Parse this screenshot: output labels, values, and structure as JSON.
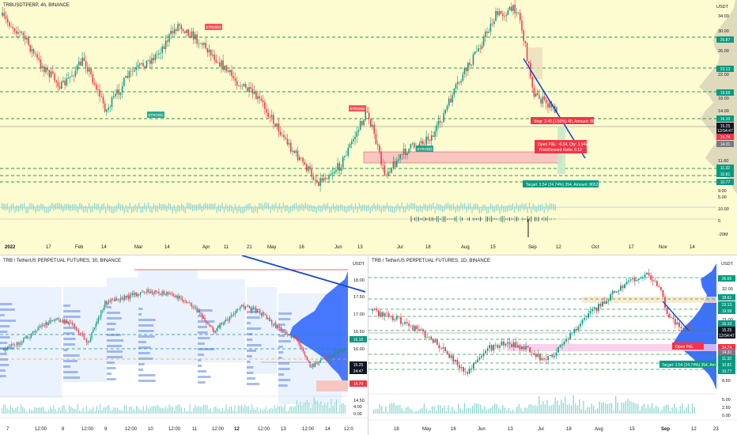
{
  "top_chart": {
    "title": "TRBUSDTPERP, 4h, BINANCE",
    "currency": "USDT",
    "x_ticks": [
      "2022",
      "17",
      "Feb",
      "14",
      "Mar",
      "14",
      "Apr",
      "11",
      "21",
      "May",
      "16",
      "Jun",
      "13",
      "Jul",
      "18",
      "Aug",
      "15",
      "Sep",
      "12",
      "Oct",
      "17",
      "Nov",
      "14"
    ],
    "price_ticks": [
      "34.00",
      "30.00",
      "26.00",
      "22.00",
      "18.00",
      "14.00",
      "11.60",
      "9.00",
      "5.00"
    ],
    "level_badges": [
      {
        "label": "26.87",
        "color": "#089981"
      },
      {
        "label": "23.13",
        "color": "#089981"
      },
      {
        "label": "19.58",
        "color": "#089981"
      },
      {
        "label": "16.10",
        "color": "#089981"
      },
      {
        "label": "15.25",
        "color": "#131722"
      },
      {
        "label": "13:54:47",
        "color": "#131722"
      },
      {
        "label": "14.74",
        "color": "#f23645"
      },
      {
        "label": "14.31",
        "color": "#787b86"
      },
      {
        "label": "11.32",
        "color": "#089981"
      },
      {
        "label": "10.81",
        "color": "#089981"
      },
      {
        "label": "10.77",
        "color": "#089981"
      }
    ],
    "volume_ticks": [
      "10.00",
      "0.00"
    ],
    "osc_ticks": [
      "0",
      "-20M"
    ],
    "signals": [
      {
        "label": "STRONG",
        "kind": "sell"
      },
      {
        "label": "STRONG",
        "kind": "buy"
      },
      {
        "label": "STRONG",
        "kind": "sell"
      },
      {
        "label": "STRONG",
        "kind": "buy"
      }
    ],
    "position_labels": {
      "stop": "Stop: 2.43 (3.50%) 40, Amount: 890",
      "open_pl": "Open P&L: -0.54, Qty: 1.542",
      "risk_reward": "Risk/Reward Ratio: 0.12",
      "target": "Target: 3.54 (24.74%) 354, Amount: 8652.08"
    }
  },
  "bottom_left_chart": {
    "title": "TRB / TetherUS PERPETUAL FUTURES, 30, BINANCE",
    "currency": "USDT",
    "price_ticks": [
      "18.00",
      "17.50",
      "17.00",
      "16.50",
      "16.00",
      "15.50",
      "15.00",
      "14.50"
    ],
    "level_badges": [
      {
        "label": "16.10",
        "color": "#089981"
      },
      {
        "label": "15.25",
        "color": "#131722"
      },
      {
        "label": "24:47",
        "color": "#131722"
      },
      {
        "label": "14.74",
        "color": "#f23645"
      }
    ],
    "x_ticks": [
      "7",
      "12:00",
      "8",
      "12:00",
      "9",
      "12:00",
      "10",
      "12:00",
      "11",
      "12:00",
      "12",
      "12:00",
      "13",
      "12:00",
      "14",
      "12:0"
    ],
    "volume_ticks": [
      "4.00",
      "0.00"
    ]
  },
  "bottom_right_chart": {
    "title": "TRB / TetherUS PERPETUAL FUTURES, 1D, BINANCE",
    "currency": "USDT",
    "price_ticks": [
      "32.00",
      "21.00",
      "16.00",
      "12.00",
      "8.50"
    ],
    "level_badges": [
      {
        "label": "26.65",
        "color": "#089981"
      },
      {
        "label": "18.61",
        "color": "#089981"
      },
      {
        "label": "23.13",
        "color": "#089981"
      },
      {
        "label": "19.58",
        "color": "#089981"
      },
      {
        "label": "16.10",
        "color": "#089981"
      },
      {
        "label": "15.25",
        "color": "#131722"
      },
      {
        "label": "13:54:47",
        "color": "#131722"
      },
      {
        "label": "14.74",
        "color": "#f23645"
      },
      {
        "label": "14.31",
        "color": "#787b86"
      },
      {
        "label": "11.32",
        "color": "#089981"
      },
      {
        "label": "10.81",
        "color": "#089981"
      },
      {
        "label": "10.77",
        "color": "#089981"
      }
    ],
    "x_ticks": [
      "18",
      "May",
      "16",
      "Jun",
      "13",
      "Jul",
      "18",
      "Aug",
      "15",
      "Sep",
      "12",
      "23"
    ],
    "volume_ticks": [
      "5.00",
      "2.50",
      "0.00"
    ],
    "position_labels": {
      "open_pl": "Open P&L",
      "target": "Target: 3.54 (24.74%) 354, Am"
    }
  },
  "colors": {
    "up": "#089981",
    "down": "#f23645",
    "level": "#1e9c4a",
    "trend": "#1848c8",
    "profile": "#2962ff"
  }
}
